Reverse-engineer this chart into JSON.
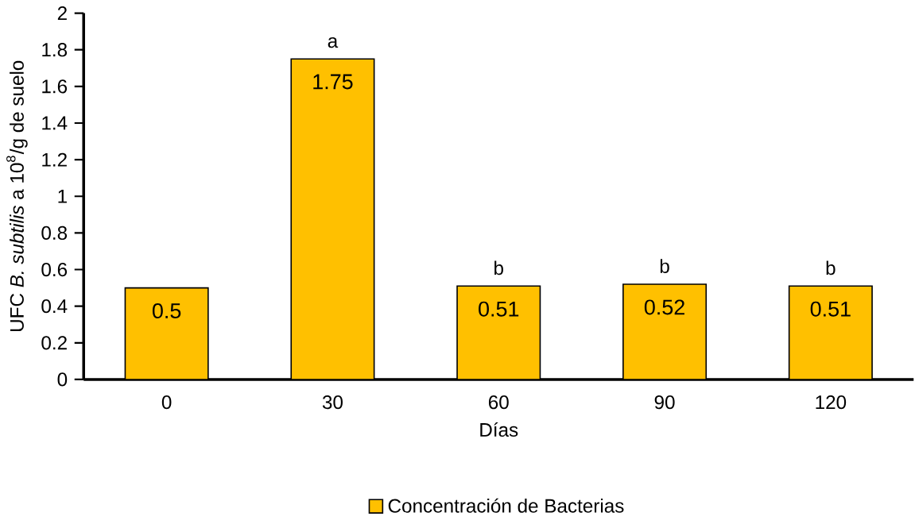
{
  "chart_data": {
    "type": "bar",
    "xlabel": "Días",
    "ylabel": "UFC *B. subtilis* a 10$^{8}$/g de suelo",
    "categories": [
      "0",
      "30",
      "60",
      "90",
      "120"
    ],
    "series": [
      {
        "name": "Concentración de Bacterias",
        "color": "#ffc000",
        "values": [
          0.5,
          1.75,
          0.51,
          0.52,
          0.51
        ]
      }
    ],
    "ylim": [
      0,
      2
    ],
    "yticks": [
      0,
      0.2,
      0.4,
      0.6,
      0.8,
      1,
      1.2,
      1.4,
      1.6,
      1.8,
      2
    ],
    "data_labels": true,
    "grid": false,
    "legend": "bottom",
    "annotations": [
      {
        "text": "a",
        "x": "30",
        "y": 1.75
      },
      {
        "text": "b",
        "x": "60",
        "y": 0.51
      },
      {
        "text": "b",
        "x": "90",
        "y": 0.52
      },
      {
        "text": "b",
        "x": "120",
        "y": 0.51
      }
    ]
  }
}
